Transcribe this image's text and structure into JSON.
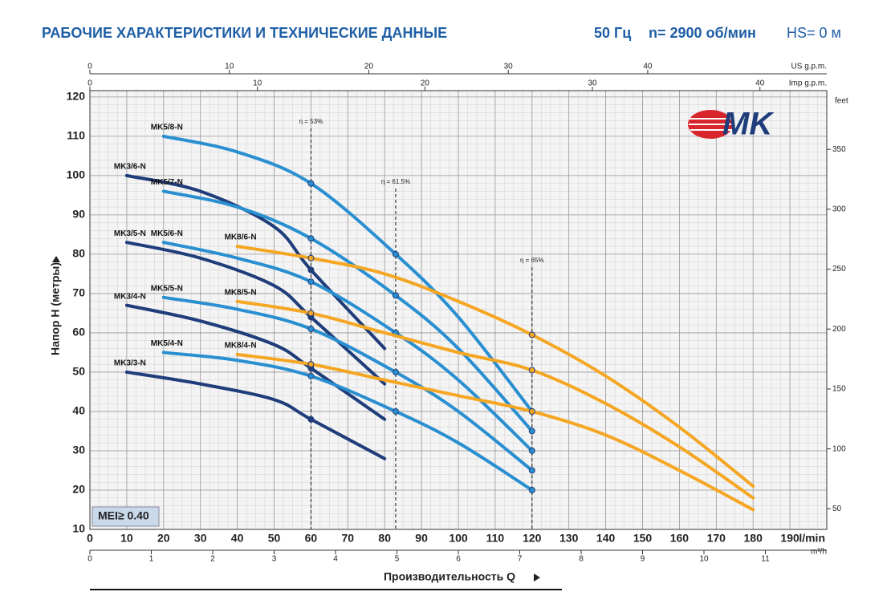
{
  "chart_data": {
    "type": "line",
    "title": "РАБОЧИЕ ХАРАКТЕРИСТИКИ И ТЕХНИЧЕСКИЕ ДАННЫЕ",
    "frequency": "50 Гц",
    "speed": "n= 2900 об/мин",
    "suction": "HS= 0 м",
    "ylabel": "Напор H (метры)",
    "xlabel": "Производительность Q",
    "xunit": "l/min",
    "badge": "MEI≥ 0.40",
    "logo": "MK",
    "xlim": [
      0,
      200
    ],
    "xticks": [
      0,
      10,
      20,
      30,
      40,
      50,
      60,
      70,
      80,
      90,
      100,
      110,
      120,
      130,
      140,
      150,
      160,
      170,
      180,
      190
    ],
    "ylim": [
      10,
      121.6
    ],
    "yticks": [
      10,
      20,
      30,
      40,
      50,
      60,
      70,
      80,
      90,
      100,
      110,
      120
    ],
    "y2label": "feet",
    "y2lim": [
      32.8,
      399
    ],
    "y2ticks": [
      50,
      100,
      150,
      200,
      250,
      300,
      350
    ],
    "x_us_gpm": {
      "label": "US g.p.m.",
      "lim": [
        0,
        52.84
      ],
      "ticks": [
        0,
        10,
        20,
        30,
        40
      ]
    },
    "x_imp_gpm": {
      "label": "Imp g.p.m.",
      "lim": [
        0,
        43.99
      ],
      "ticks": [
        0,
        10,
        20,
        30,
        40
      ]
    },
    "x_m3h": {
      "label": "m³/h",
      "lim": [
        0,
        12
      ],
      "ticks": [
        0,
        1,
        2,
        3,
        4,
        5,
        6,
        7,
        8,
        9,
        10,
        11
      ]
    },
    "grid": true,
    "efficiency_lines": [
      {
        "label": "η = 53%",
        "x": 60,
        "top": 112
      },
      {
        "label": "η = 61.5%",
        "x": 83,
        "top": 96.7
      },
      {
        "label": "η = 65%",
        "x": 120,
        "top": 76.7
      }
    ],
    "series": [
      {
        "name": "MK5/8-N",
        "color": "#2a8fd0",
        "x": [
          20,
          40,
          60,
          83,
          100,
          120
        ],
        "values": [
          110,
          106,
          98,
          80,
          64,
          40
        ]
      },
      {
        "name": "MK3/6-N",
        "color": "#1f3d7a",
        "x": [
          10,
          30,
          50,
          60,
          80
        ],
        "values": [
          100,
          96,
          87,
          76,
          56
        ]
      },
      {
        "name": "MK5/7-N",
        "color": "#2a8fd0",
        "x": [
          20,
          40,
          60,
          83,
          100,
          120
        ],
        "values": [
          96,
          92,
          84,
          69.5,
          56,
          35
        ]
      },
      {
        "name": "MK3/5-N",
        "color": "#1f3d7a",
        "x": [
          10,
          30,
          50,
          60,
          80
        ],
        "values": [
          83,
          79,
          72,
          64,
          47
        ]
      },
      {
        "name": "MK5/6-N",
        "color": "#2a8fd0",
        "x": [
          20,
          40,
          60,
          83,
          100,
          120
        ],
        "values": [
          83,
          79,
          73,
          60,
          48,
          30
        ]
      },
      {
        "name": "MK8/6-N",
        "color": "#f5a623",
        "x": [
          40,
          60,
          80,
          100,
          120,
          140,
          160,
          180
        ],
        "values": [
          82,
          79,
          75,
          68,
          59.5,
          49,
          36,
          21
        ]
      },
      {
        "name": "MK5/5-N",
        "color": "#2a8fd0",
        "x": [
          20,
          40,
          60,
          83,
          100,
          120
        ],
        "values": [
          69,
          66,
          61,
          50,
          40,
          25
        ]
      },
      {
        "name": "MK8/5-N",
        "color": "#f5a623",
        "x": [
          40,
          60,
          80,
          100,
          120,
          140,
          160,
          180
        ],
        "values": [
          68,
          65,
          60,
          55,
          50.5,
          42,
          31,
          18
        ]
      },
      {
        "name": "MK3/4-N",
        "color": "#1f3d7a",
        "x": [
          10,
          30,
          50,
          60,
          80
        ],
        "values": [
          67,
          63,
          57,
          51,
          38
        ]
      },
      {
        "name": "MK5/4-N",
        "color": "#2a8fd0",
        "x": [
          20,
          40,
          60,
          83,
          100,
          120
        ],
        "values": [
          55,
          53,
          49,
          40,
          32,
          20
        ]
      },
      {
        "name": "MK8/4-N",
        "color": "#f5a623",
        "x": [
          40,
          60,
          80,
          100,
          120,
          140,
          160,
          180
        ],
        "values": [
          54.5,
          52,
          48,
          44,
          40,
          34,
          25,
          15
        ]
      },
      {
        "name": "MK3/3-N",
        "color": "#1f3d7a",
        "x": [
          10,
          30,
          50,
          60,
          80
        ],
        "values": [
          50,
          47,
          43,
          38,
          28
        ]
      }
    ]
  }
}
